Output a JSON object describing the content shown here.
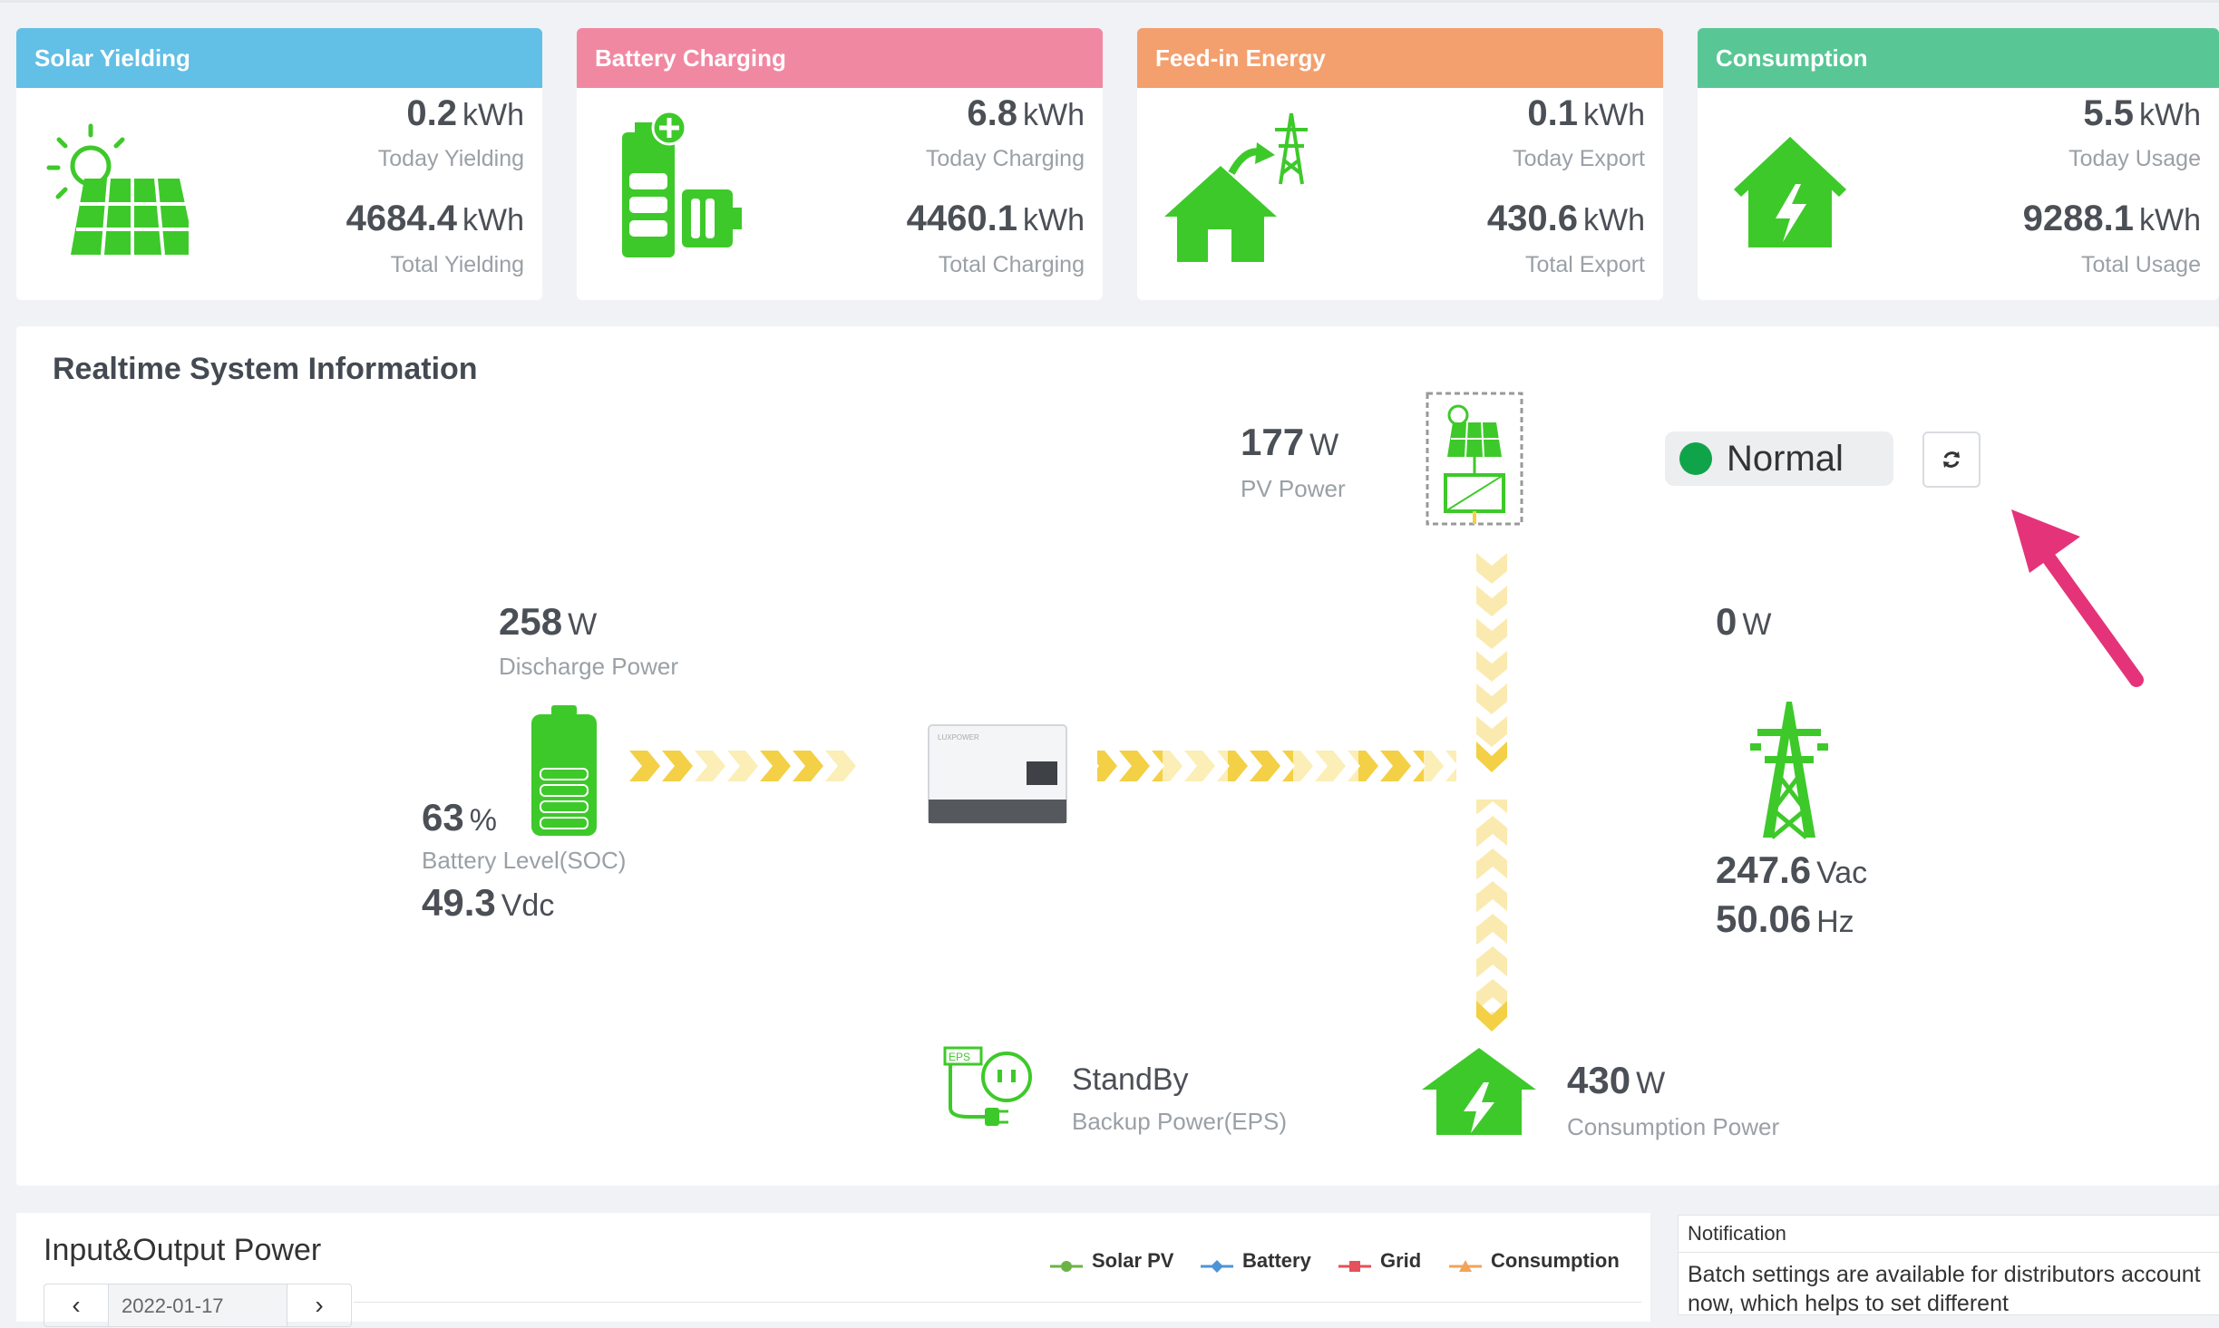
{
  "cards": [
    {
      "title": "Solar Yielding",
      "color": "#62bfe6",
      "today_value": "0.2",
      "unit": "kWh",
      "today_label": "Today Yielding",
      "total_value": "4684.4",
      "total_label": "Total Yielding",
      "icon": "solar-panel-icon"
    },
    {
      "title": "Battery Charging",
      "color": "#f188a2",
      "today_value": "6.8",
      "unit": "kWh",
      "today_label": "Today Charging",
      "total_value": "4460.1",
      "total_label": "Total Charging",
      "icon": "battery-charging-icon"
    },
    {
      "title": "Feed-in Energy",
      "color": "#f39f6e",
      "today_value": "0.1",
      "unit": "kWh",
      "today_label": "Today Export",
      "total_value": "430.6",
      "total_label": "Total Export",
      "icon": "house-to-grid-icon"
    },
    {
      "title": "Consumption",
      "color": "#58c795",
      "today_value": "5.5",
      "unit": "kWh",
      "today_label": "Today Usage",
      "total_value": "9288.1",
      "total_label": "Total Usage",
      "icon": "house-consumption-icon"
    }
  ],
  "realtime": {
    "title": "Realtime System Information",
    "status": "Normal",
    "status_color": "#10a44a",
    "pv": {
      "value": "177",
      "unit": "W",
      "label": "PV Power"
    },
    "battery": {
      "value": "258",
      "unit": "W",
      "label": "Discharge Power",
      "soc_value": "63",
      "soc_unit": "%",
      "soc_label": "Battery Level(SOC)",
      "voltage_value": "49.3",
      "voltage_unit": "Vdc"
    },
    "grid": {
      "value": "0",
      "unit": "W",
      "voltage_value": "247.6",
      "voltage_unit": "Vac",
      "freq_value": "50.06",
      "freq_unit": "Hz"
    },
    "eps": {
      "status": "StandBy",
      "label": "Backup Power(EPS)"
    },
    "consumption": {
      "value": "430",
      "unit": "W",
      "label": "Consumption Power"
    },
    "accent_green": "#3ec92a",
    "arrow_color": "#e5337a"
  },
  "io": {
    "title": "Input&Output Power",
    "legend": [
      {
        "name": "Solar PV",
        "color": "#6bb347"
      },
      {
        "name": "Battery",
        "color": "#4d94d6"
      },
      {
        "name": "Grid",
        "color": "#e5505a"
      },
      {
        "name": "Consumption",
        "color": "#f2a35b"
      }
    ],
    "date": "2022-01-17"
  },
  "notification": {
    "title": "Notification",
    "text": "Batch settings are available for distributors account now, which helps to set different"
  }
}
